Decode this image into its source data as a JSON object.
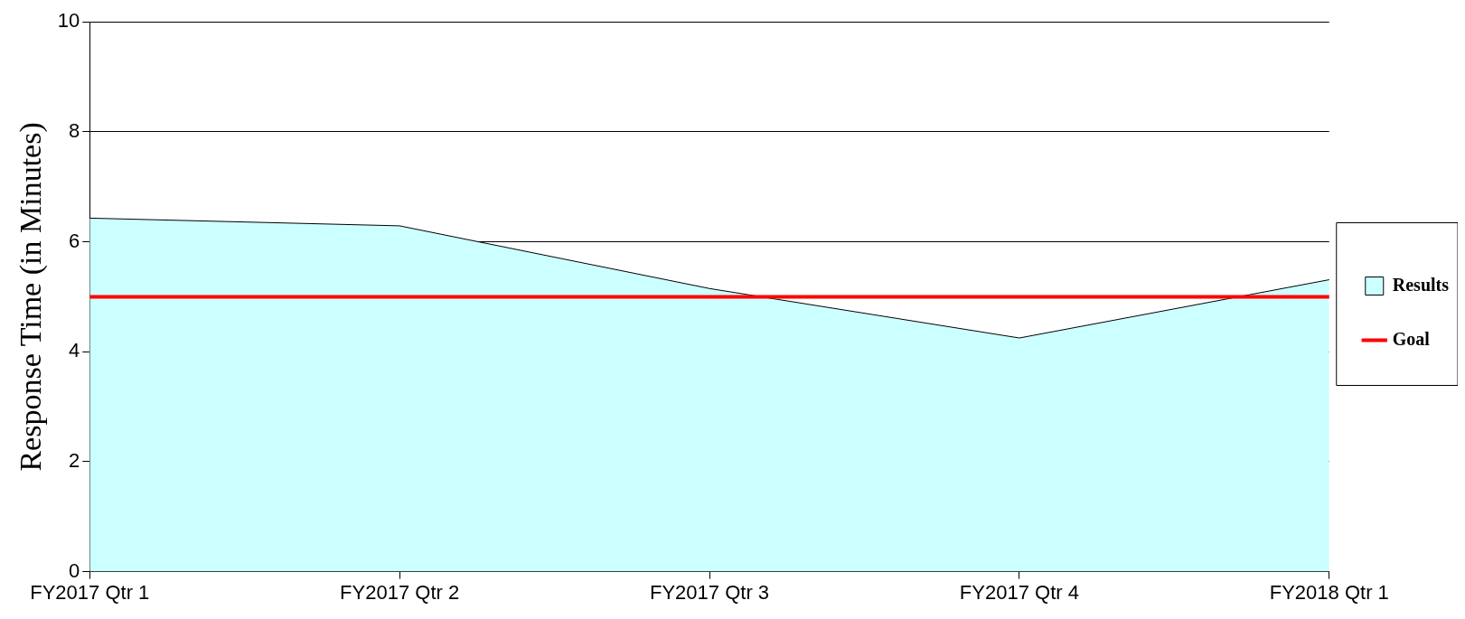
{
  "chart_data": {
    "type": "area",
    "ylabel": "Response Time (in Minutes)",
    "categories": [
      "FY2017 Qtr 1",
      "FY2017 Qtr 2",
      "FY2017 Qtr 3",
      "FY2017 Qtr 4",
      "FY2018 Qtr 1"
    ],
    "series": [
      {
        "name": "Results",
        "color": "#ccffff",
        "values": [
          6.43,
          6.29,
          5.15,
          4.25,
          5.31
        ]
      },
      {
        "name": "Goal",
        "type": "line",
        "color": "#ff0000",
        "values": [
          5,
          5,
          5,
          5,
          5
        ]
      }
    ],
    "ylim": [
      0,
      10
    ],
    "yticks": [
      0,
      2,
      4,
      6,
      8,
      10
    ],
    "grid": "y",
    "legend": "right"
  }
}
